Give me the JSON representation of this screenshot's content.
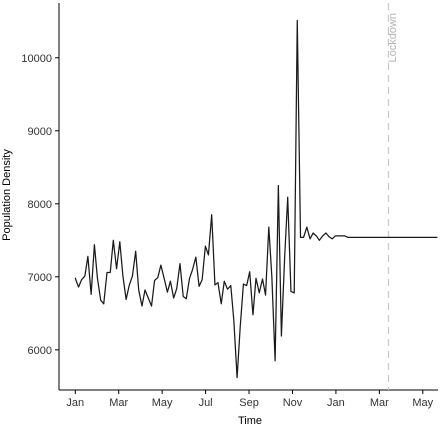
{
  "chart_data": {
    "type": "line",
    "title": "",
    "xlabel": "Time",
    "ylabel": "Population Density",
    "ylim": [
      5450,
      10750
    ],
    "y_ticks": [
      6000,
      7000,
      8000,
      9000,
      10000
    ],
    "x_ticks": [
      {
        "x": 0,
        "label": "Jan"
      },
      {
        "x": 2,
        "label": "Mar"
      },
      {
        "x": 4,
        "label": "May"
      },
      {
        "x": 6,
        "label": "Jul"
      },
      {
        "x": 8,
        "label": "Sep"
      },
      {
        "x": 10,
        "label": "Nov"
      },
      {
        "x": 12,
        "label": "Jan"
      },
      {
        "x": 14,
        "label": "Mar"
      },
      {
        "x": 16,
        "label": "May"
      }
    ],
    "xlim": [
      -0.75,
      16.7
    ],
    "grid": false,
    "series": [
      {
        "x": [
          0.0,
          0.15,
          0.29,
          0.44,
          0.58,
          0.73,
          0.88,
          1.02,
          1.17,
          1.31,
          1.46,
          1.61,
          1.75,
          1.9,
          2.05,
          2.19,
          2.34,
          2.48,
          2.63,
          2.78,
          2.92,
          3.07,
          3.21,
          3.36,
          3.51,
          3.65,
          3.8,
          3.94,
          4.09,
          4.24,
          4.38,
          4.53,
          4.67,
          4.82,
          4.97,
          5.11,
          5.26,
          5.4,
          5.55,
          5.7,
          5.84,
          5.99,
          6.13,
          6.28,
          6.43,
          6.57,
          6.72,
          6.86,
          7.01,
          7.16,
          7.3,
          7.45,
          7.59,
          7.74,
          7.89,
          8.03,
          8.18,
          8.32,
          8.47,
          8.62,
          8.76,
          8.91,
          9.05,
          9.2,
          9.35,
          9.49,
          9.64,
          9.78,
          9.93,
          10.08,
          10.22,
          10.37,
          10.51,
          10.66,
          10.81,
          10.95,
          11.1,
          11.24,
          11.39,
          11.54,
          11.68,
          11.83,
          11.97,
          12.12,
          12.27,
          12.41,
          12.56,
          12.7,
          12.85,
          13.0,
          13.14,
          13.29,
          13.43,
          13.58,
          13.73,
          13.87,
          14.02,
          14.16,
          14.31,
          14.46,
          14.6,
          14.75,
          14.89,
          15.04,
          15.19,
          15.33,
          15.48,
          15.62,
          15.77,
          15.92,
          16.06,
          16.21,
          16.35,
          16.5,
          16.65
        ],
        "values": [
          6980,
          6860,
          6960,
          7010,
          7280,
          6760,
          7440,
          6980,
          6680,
          6630,
          7060,
          7060,
          7500,
          7110,
          7480,
          7020,
          6690,
          6880,
          7010,
          7350,
          6820,
          6600,
          6820,
          6710,
          6600,
          6950,
          6990,
          7160,
          6980,
          6790,
          6940,
          6710,
          6840,
          7180,
          6730,
          6700,
          6980,
          7100,
          7270,
          6870,
          6960,
          7420,
          7300,
          7850,
          6890,
          6920,
          6630,
          6940,
          6830,
          6880,
          6400,
          5620,
          6300,
          6900,
          6880,
          7070,
          6480,
          6980,
          6780,
          6970,
          6750,
          7680,
          7000,
          5850,
          8250,
          6190,
          7270,
          8090,
          6800,
          6780,
          10510,
          7540,
          7540,
          7680,
          7520,
          7600,
          7560,
          7500,
          7560,
          7600,
          7550,
          7520,
          7560,
          7560,
          7560,
          7560,
          7540,
          7540,
          7540,
          7540,
          7540,
          7540,
          7540,
          7540,
          7540,
          7540,
          7540,
          7540,
          7540,
          7540,
          7540,
          7540,
          7540,
          7540,
          7540,
          7540,
          7540,
          7540,
          7540,
          7540,
          7540,
          7540,
          7540,
          7540,
          7540
        ]
      }
    ],
    "annotations": [
      {
        "label": "Lockdown",
        "x": 14.42,
        "line_style": "dashed",
        "color": "#c8c8c8"
      }
    ],
    "colors": {
      "series_line": "#1a1a1a",
      "axis": "#000000",
      "tick_label": "#333333",
      "annotation": "#c8c8c8",
      "annotation_text": "#b5b5b5"
    }
  }
}
